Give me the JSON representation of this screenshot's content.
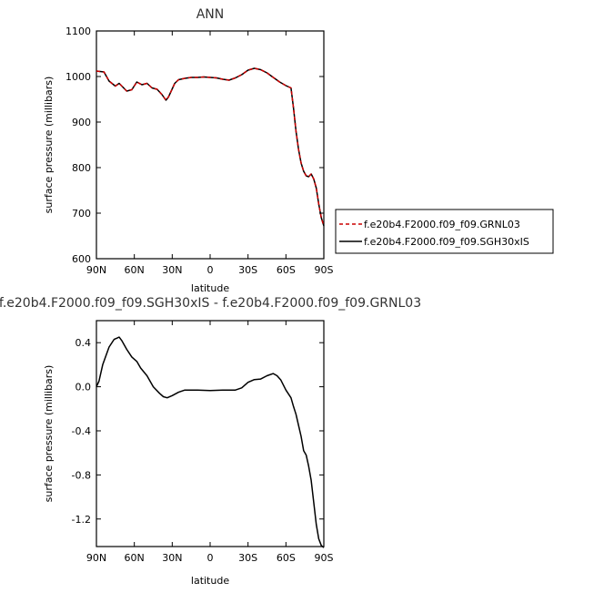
{
  "chart_data": [
    {
      "type": "line",
      "title": "ANN",
      "xlabel": "latitude",
      "ylabel": "surface pressure (millibars)",
      "xlim": [
        -90,
        90
      ],
      "ylim": [
        600,
        1100
      ],
      "x_ticks": [
        {
          "value": -90,
          "label": "90N"
        },
        {
          "value": -60,
          "label": "60N"
        },
        {
          "value": -30,
          "label": "30N"
        },
        {
          "value": 0,
          "label": "0"
        },
        {
          "value": 30,
          "label": "30S"
        },
        {
          "value": 60,
          "label": "60S"
        },
        {
          "value": 90,
          "label": "90S"
        }
      ],
      "y_ticks": [
        {
          "value": 600,
          "label": "600"
        },
        {
          "value": 700,
          "label": "700"
        },
        {
          "value": 800,
          "label": "800"
        },
        {
          "value": 900,
          "label": "900"
        },
        {
          "value": 1000,
          "label": "1000"
        },
        {
          "value": 1100,
          "label": "1100"
        }
      ],
      "legend_position": "right",
      "series": [
        {
          "name": "f.e20b4.F2000.f09_f09.GRNL03",
          "color": "#cc0000",
          "dash": "dashed",
          "x": [
            -90,
            -84,
            -80,
            -75,
            -72,
            -66,
            -62,
            -58,
            -54,
            -50,
            -46,
            -42,
            -38,
            -35,
            -33,
            -28,
            -25,
            -20,
            -15,
            -10,
            -5,
            0,
            5,
            10,
            15,
            20,
            25,
            30,
            35,
            40,
            45,
            50,
            55,
            60,
            64,
            66,
            68,
            70,
            72,
            74,
            76,
            78,
            80,
            82,
            84,
            86,
            88,
            90
          ],
          "y": [
            1012,
            1010,
            990,
            979,
            985,
            968,
            971,
            988,
            982,
            985,
            975,
            972,
            960,
            948,
            955,
            985,
            993,
            996,
            998,
            998,
            999,
            998,
            997,
            994,
            992,
            997,
            1004,
            1014,
            1018,
            1015,
            1008,
            998,
            988,
            980,
            975,
            930,
            880,
            840,
            810,
            792,
            782,
            780,
            786,
            775,
            755,
            720,
            690,
            672
          ]
        },
        {
          "name": "f.e20b4.F2000.f09_f09.SGH30xIS",
          "color": "#000000",
          "dash": "solid",
          "x": [
            -90,
            -84,
            -80,
            -75,
            -72,
            -66,
            -62,
            -58,
            -54,
            -50,
            -46,
            -42,
            -38,
            -35,
            -33,
            -28,
            -25,
            -20,
            -15,
            -10,
            -5,
            0,
            5,
            10,
            15,
            20,
            25,
            30,
            35,
            40,
            45,
            50,
            55,
            60,
            64,
            66,
            68,
            70,
            72,
            74,
            76,
            78,
            80,
            82,
            84,
            86,
            88,
            90
          ],
          "y": [
            1012,
            1010,
            990,
            979,
            985,
            968,
            971,
            988,
            982,
            985,
            975,
            972,
            960,
            948,
            955,
            985,
            993,
            996,
            998,
            998,
            999,
            998,
            997,
            994,
            992,
            997,
            1004,
            1014,
            1018,
            1015,
            1008,
            998,
            988,
            980,
            975,
            930,
            880,
            840,
            810,
            792,
            782,
            780,
            786,
            775,
            755,
            720,
            690,
            672
          ]
        }
      ]
    },
    {
      "type": "line",
      "title": "f.e20b4.F2000.f09_f09.SGH30xIS - f.e20b4.F2000.f09_f09.GRNL03",
      "xlabel": "latitude",
      "ylabel": "surface pressure (millibars)",
      "xlim": [
        -90,
        90
      ],
      "ylim": [
        -1.45,
        0.6
      ],
      "x_ticks": [
        {
          "value": -90,
          "label": "90N"
        },
        {
          "value": -60,
          "label": "60N"
        },
        {
          "value": -30,
          "label": "30N"
        },
        {
          "value": 0,
          "label": "0"
        },
        {
          "value": 30,
          "label": "30S"
        },
        {
          "value": 60,
          "label": "60S"
        },
        {
          "value": 90,
          "label": "90S"
        }
      ],
      "y_ticks": [
        {
          "value": 0.4,
          "label": "0.4"
        },
        {
          "value": 0.0,
          "label": "0.0"
        },
        {
          "value": -0.4,
          "label": "-0.4"
        },
        {
          "value": -0.8,
          "label": "-0.8"
        },
        {
          "value": -1.2,
          "label": "-1.2"
        }
      ],
      "series": [
        {
          "color": "#000000",
          "dash": "solid",
          "x": [
            -90,
            -88,
            -85,
            -80,
            -76,
            -72,
            -70,
            -66,
            -62,
            -58,
            -55,
            -50,
            -45,
            -40,
            -37,
            -34,
            -30,
            -25,
            -20,
            -10,
            0,
            10,
            20,
            25,
            30,
            35,
            40,
            45,
            50,
            53,
            56,
            60,
            64,
            66,
            68,
            70,
            72,
            74,
            76,
            78,
            80,
            82,
            84,
            86,
            88,
            90
          ],
          "y": [
            0.0,
            0.05,
            0.2,
            0.36,
            0.43,
            0.45,
            0.42,
            0.34,
            0.27,
            0.23,
            0.17,
            0.1,
            0.0,
            -0.06,
            -0.09,
            -0.1,
            -0.08,
            -0.05,
            -0.03,
            -0.03,
            -0.035,
            -0.03,
            -0.03,
            -0.01,
            0.04,
            0.065,
            0.07,
            0.1,
            0.12,
            0.1,
            0.06,
            -0.03,
            -0.1,
            -0.18,
            -0.25,
            -0.35,
            -0.45,
            -0.58,
            -0.62,
            -0.72,
            -0.85,
            -1.05,
            -1.25,
            -1.38,
            -1.44,
            -1.46
          ]
        }
      ]
    }
  ]
}
